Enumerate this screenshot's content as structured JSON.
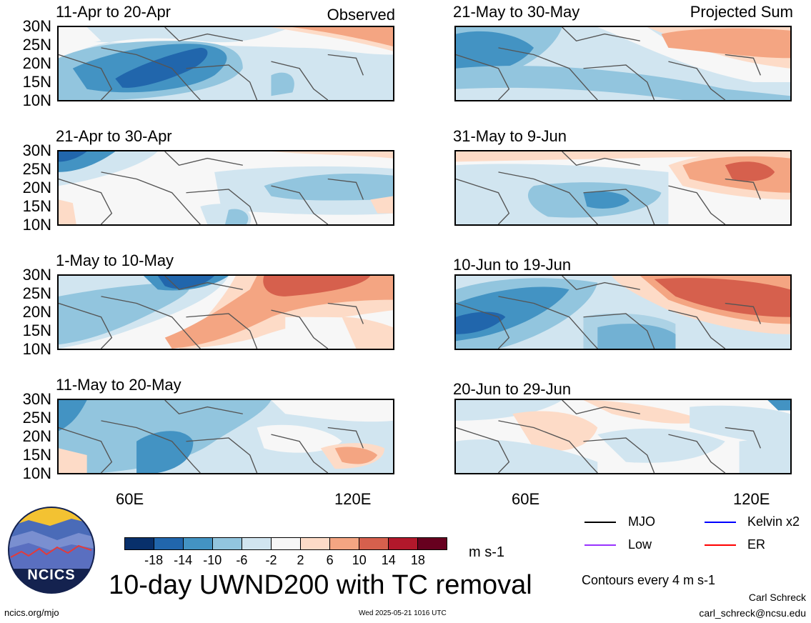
{
  "panels": [
    {
      "title": "11-Apr to 20-Apr",
      "corner": "Observed"
    },
    {
      "title": "21-Apr to 30-Apr",
      "corner": ""
    },
    {
      "title": "1-May to 10-May",
      "corner": ""
    },
    {
      "title": "11-May to 20-May",
      "corner": ""
    },
    {
      "title": "21-May to 30-May",
      "corner": "Projected Sum"
    },
    {
      "title": "31-May to 9-Jun",
      "corner": ""
    },
    {
      "title": "10-Jun to 19-Jun",
      "corner": ""
    },
    {
      "title": "20-Jun to 29-Jun",
      "corner": ""
    }
  ],
  "lat_labels": [
    "30N",
    "25N",
    "20N",
    "15N",
    "10N"
  ],
  "lon_labels": [
    "60E",
    "120E"
  ],
  "colorbar": {
    "colors": [
      "#08306b",
      "#2166ac",
      "#4393c3",
      "#92c5de",
      "#d1e5f0",
      "#f7f7f7",
      "#fddbc7",
      "#f4a582",
      "#d6604d",
      "#b2182b",
      "#67001f"
    ],
    "ticks": [
      "-18",
      "-14",
      "-10",
      "-6",
      "-2",
      "2",
      "6",
      "10",
      "14",
      "18"
    ],
    "units": "m s-1"
  },
  "legend": [
    {
      "label": "MJO",
      "color": "#000000"
    },
    {
      "label": "Kelvin x2",
      "color": "#0000ff"
    },
    {
      "label": "Low",
      "color": "#9933ff"
    },
    {
      "label": "ER",
      "color": "#ff0000"
    }
  ],
  "contours_note": "Contours every 4 m s-1",
  "main_title": "10-day UWND200 with TC removal",
  "logo_text": "NCICS",
  "footer": {
    "url": "ncics.org/mjo",
    "timestamp": "Wed 2025-05-21 1016 UTC",
    "author": "Carl Schreck",
    "email": "carl_schreck@ncsu.edu"
  }
}
